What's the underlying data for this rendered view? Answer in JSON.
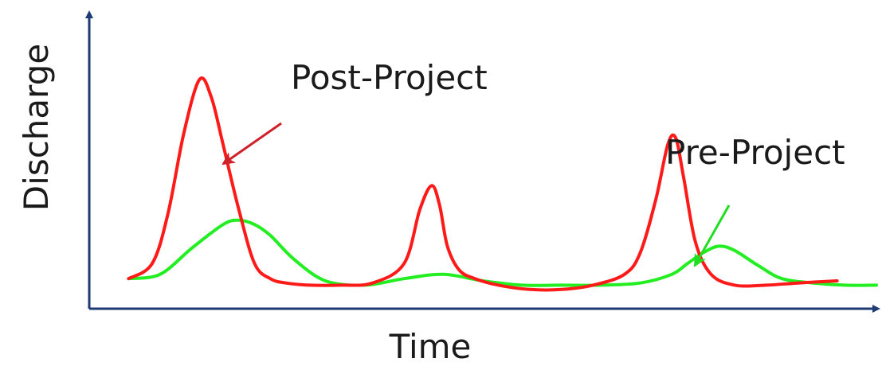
{
  "chart_data": {
    "type": "line",
    "xlabel": "Time",
    "ylabel": "Discharge",
    "grid": false,
    "xlim": [
      0,
      100
    ],
    "ylim": [
      0,
      100
    ],
    "axis_color": "#1c3a73",
    "series": [
      {
        "key": "post",
        "color": "#ff1a1a",
        "x": [
          5,
          8,
          10,
          12,
          14,
          15.5,
          17,
          19,
          21,
          23,
          25,
          28,
          32,
          36,
          40,
          42,
          43.5,
          44.5,
          45.5,
          47,
          49,
          52,
          56,
          60,
          64,
          68,
          70,
          72,
          73.5,
          74.5,
          75.5,
          77,
          79,
          82,
          86,
          90,
          95
        ],
        "y": [
          8,
          15,
          38,
          75,
          100,
          92,
          70,
          40,
          15,
          8,
          6,
          5,
          5,
          6,
          15,
          40,
          51,
          42,
          23,
          12,
          8,
          5,
          3,
          3,
          5,
          10,
          20,
          45,
          70,
          73,
          55,
          25,
          10,
          5,
          5,
          6,
          7
        ]
      },
      {
        "key": "pre",
        "color": "#22ee22",
        "x": [
          5,
          9,
          13,
          17,
          19,
          21,
          23,
          26,
          30,
          35,
          40,
          45,
          50,
          55,
          60,
          65,
          70,
          74,
          76,
          78,
          80,
          82,
          85,
          88,
          92,
          96,
          100
        ],
        "y": [
          8,
          10,
          22,
          33,
          35,
          33,
          28,
          17,
          7,
          5,
          8,
          10,
          7,
          5,
          5,
          5,
          6,
          10,
          15,
          20,
          23,
          21,
          14,
          8,
          6,
          5,
          5
        ]
      }
    ],
    "annotations": [
      {
        "text": "Post-Project",
        "target_series": "post"
      },
      {
        "text": "Pre-Project",
        "target_series": "pre"
      }
    ]
  }
}
